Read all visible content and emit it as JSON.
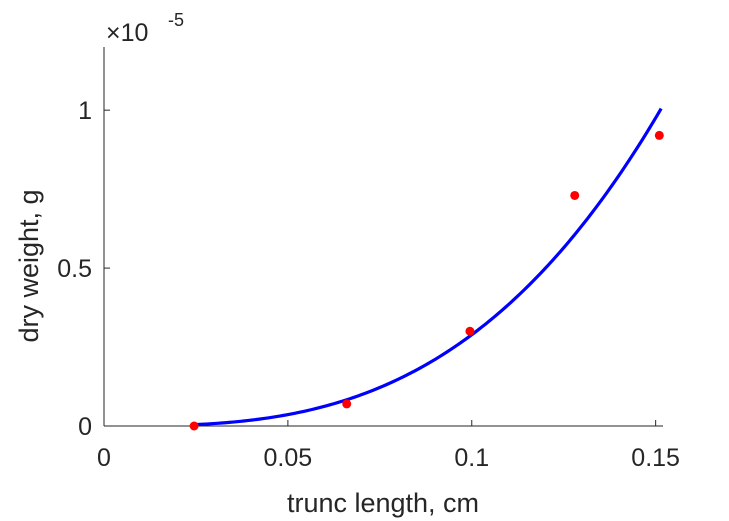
{
  "chart_data": {
    "type": "line",
    "xlabel": "trunc length, cm",
    "ylabel": "dry weight, g",
    "xlim": [
      0,
      0.152
    ],
    "ylim": [
      0,
      1.2e-05
    ],
    "x_ticks": [
      {
        "value": 0,
        "label": "0"
      },
      {
        "value": 0.05,
        "label": "0.05"
      },
      {
        "value": 0.1,
        "label": "0.1"
      },
      {
        "value": 0.15,
        "label": "0.15"
      }
    ],
    "y_ticks": [
      {
        "value": 0,
        "label": "0"
      },
      {
        "value": 5e-06,
        "label": "0.5"
      },
      {
        "value": 1e-05,
        "label": "1"
      }
    ],
    "y_exponent": {
      "base": "×10",
      "power": "-5"
    },
    "series": [
      {
        "type": "line",
        "color": "#0000ff",
        "model": {
          "form": "power",
          "coefficient": 0.00289,
          "exponent": 3
        },
        "x_range": [
          0.0245,
          0.1515
        ]
      },
      {
        "type": "scatter",
        "color": "#ff0000",
        "points": [
          {
            "x": 0.0245,
            "y": 0.0
          },
          {
            "x": 0.066,
            "y": 7e-07
          },
          {
            "x": 0.0995,
            "y": 3e-06
          },
          {
            "x": 0.128,
            "y": 7.3e-06
          },
          {
            "x": 0.151,
            "y": 9.2e-06
          }
        ]
      }
    ],
    "grid": false,
    "legend": false
  }
}
